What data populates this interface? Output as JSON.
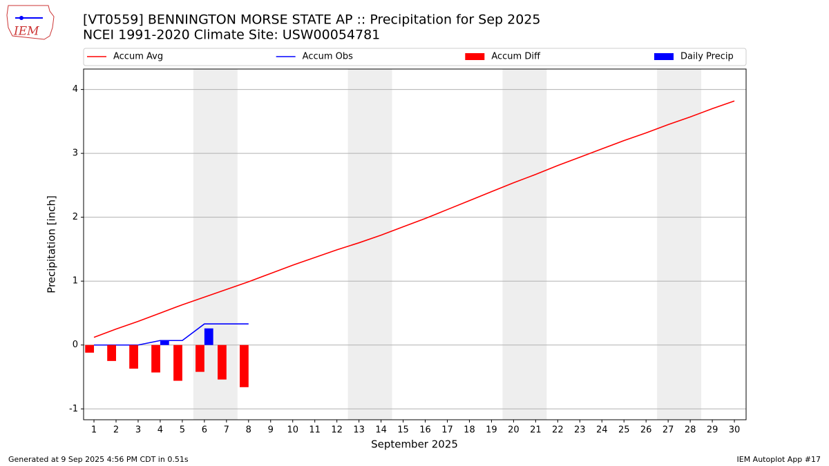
{
  "logo_text": "IEM",
  "chart_data": {
    "type": "line",
    "title": "[VT0559] BENNINGTON MORSE STATE AP :: Precipitation for Sep 2025",
    "subtitle": "NCEI 1991-2020 Climate Site: USW00054781",
    "x_label": "September 2025",
    "y_label": "Precipitation [inch]",
    "footer_left": "Generated at 9 Sep 2025 4:56 PM CDT in 0.51s",
    "footer_right": "IEM Autoplot App #17",
    "x": [
      1,
      2,
      3,
      4,
      5,
      6,
      7,
      8,
      9,
      10,
      11,
      12,
      13,
      14,
      15,
      16,
      17,
      18,
      19,
      20,
      21,
      22,
      23,
      24,
      25,
      26,
      27,
      28,
      29,
      30
    ],
    "xlim": [
      0.53,
      30.53
    ],
    "xticks": [
      1,
      2,
      3,
      4,
      5,
      6,
      7,
      8,
      9,
      10,
      11,
      12,
      13,
      14,
      15,
      16,
      17,
      18,
      19,
      20,
      21,
      22,
      23,
      24,
      25,
      26,
      27,
      28,
      29,
      30
    ],
    "ylim": [
      -1.17,
      4.32
    ],
    "yticks": [
      -1,
      0,
      1,
      2,
      3,
      4
    ],
    "grid": true,
    "legend": "top",
    "shaded_spans": [
      [
        5.5,
        7.5
      ],
      [
        12.5,
        14.5
      ],
      [
        19.5,
        21.5
      ],
      [
        26.5,
        28.5
      ]
    ],
    "shade_color": "#eeeeee",
    "series": [
      {
        "name": "Accum Avg",
        "kind": "line",
        "color": "#ff0000",
        "values": [
          0.12,
          0.25,
          0.37,
          0.5,
          0.63,
          0.75,
          0.87,
          0.99,
          1.12,
          1.25,
          1.37,
          1.49,
          1.6,
          1.72,
          1.85,
          1.98,
          2.12,
          2.26,
          2.4,
          2.54,
          2.67,
          2.81,
          2.94,
          3.07,
          3.2,
          3.32,
          3.45,
          3.57,
          3.7,
          3.82
        ]
      },
      {
        "name": "Accum Obs",
        "kind": "line",
        "color": "#0000ff",
        "values": [
          0,
          0,
          0,
          0.07,
          0.07,
          0.33,
          0.33,
          0.33,
          null,
          null,
          null,
          null,
          null,
          null,
          null,
          null,
          null,
          null,
          null,
          null,
          null,
          null,
          null,
          null,
          null,
          null,
          null,
          null,
          null,
          null
        ]
      },
      {
        "name": "Accum Diff",
        "kind": "bar",
        "color": "#ff0000",
        "values": [
          -0.12,
          -0.25,
          -0.37,
          -0.43,
          -0.56,
          -0.42,
          -0.54,
          -0.66,
          null,
          null,
          null,
          null,
          null,
          null,
          null,
          null,
          null,
          null,
          null,
          null,
          null,
          null,
          null,
          null,
          null,
          null,
          null,
          null,
          null,
          null
        ]
      },
      {
        "name": "Daily Precip",
        "kind": "bar",
        "color": "#0000ff",
        "values": [
          0,
          0,
          0,
          0.07,
          0,
          0.26,
          0,
          0,
          null,
          null,
          null,
          null,
          null,
          null,
          null,
          null,
          null,
          null,
          null,
          null,
          null,
          null,
          null,
          null,
          null,
          null,
          null,
          null,
          null,
          null
        ]
      }
    ]
  }
}
